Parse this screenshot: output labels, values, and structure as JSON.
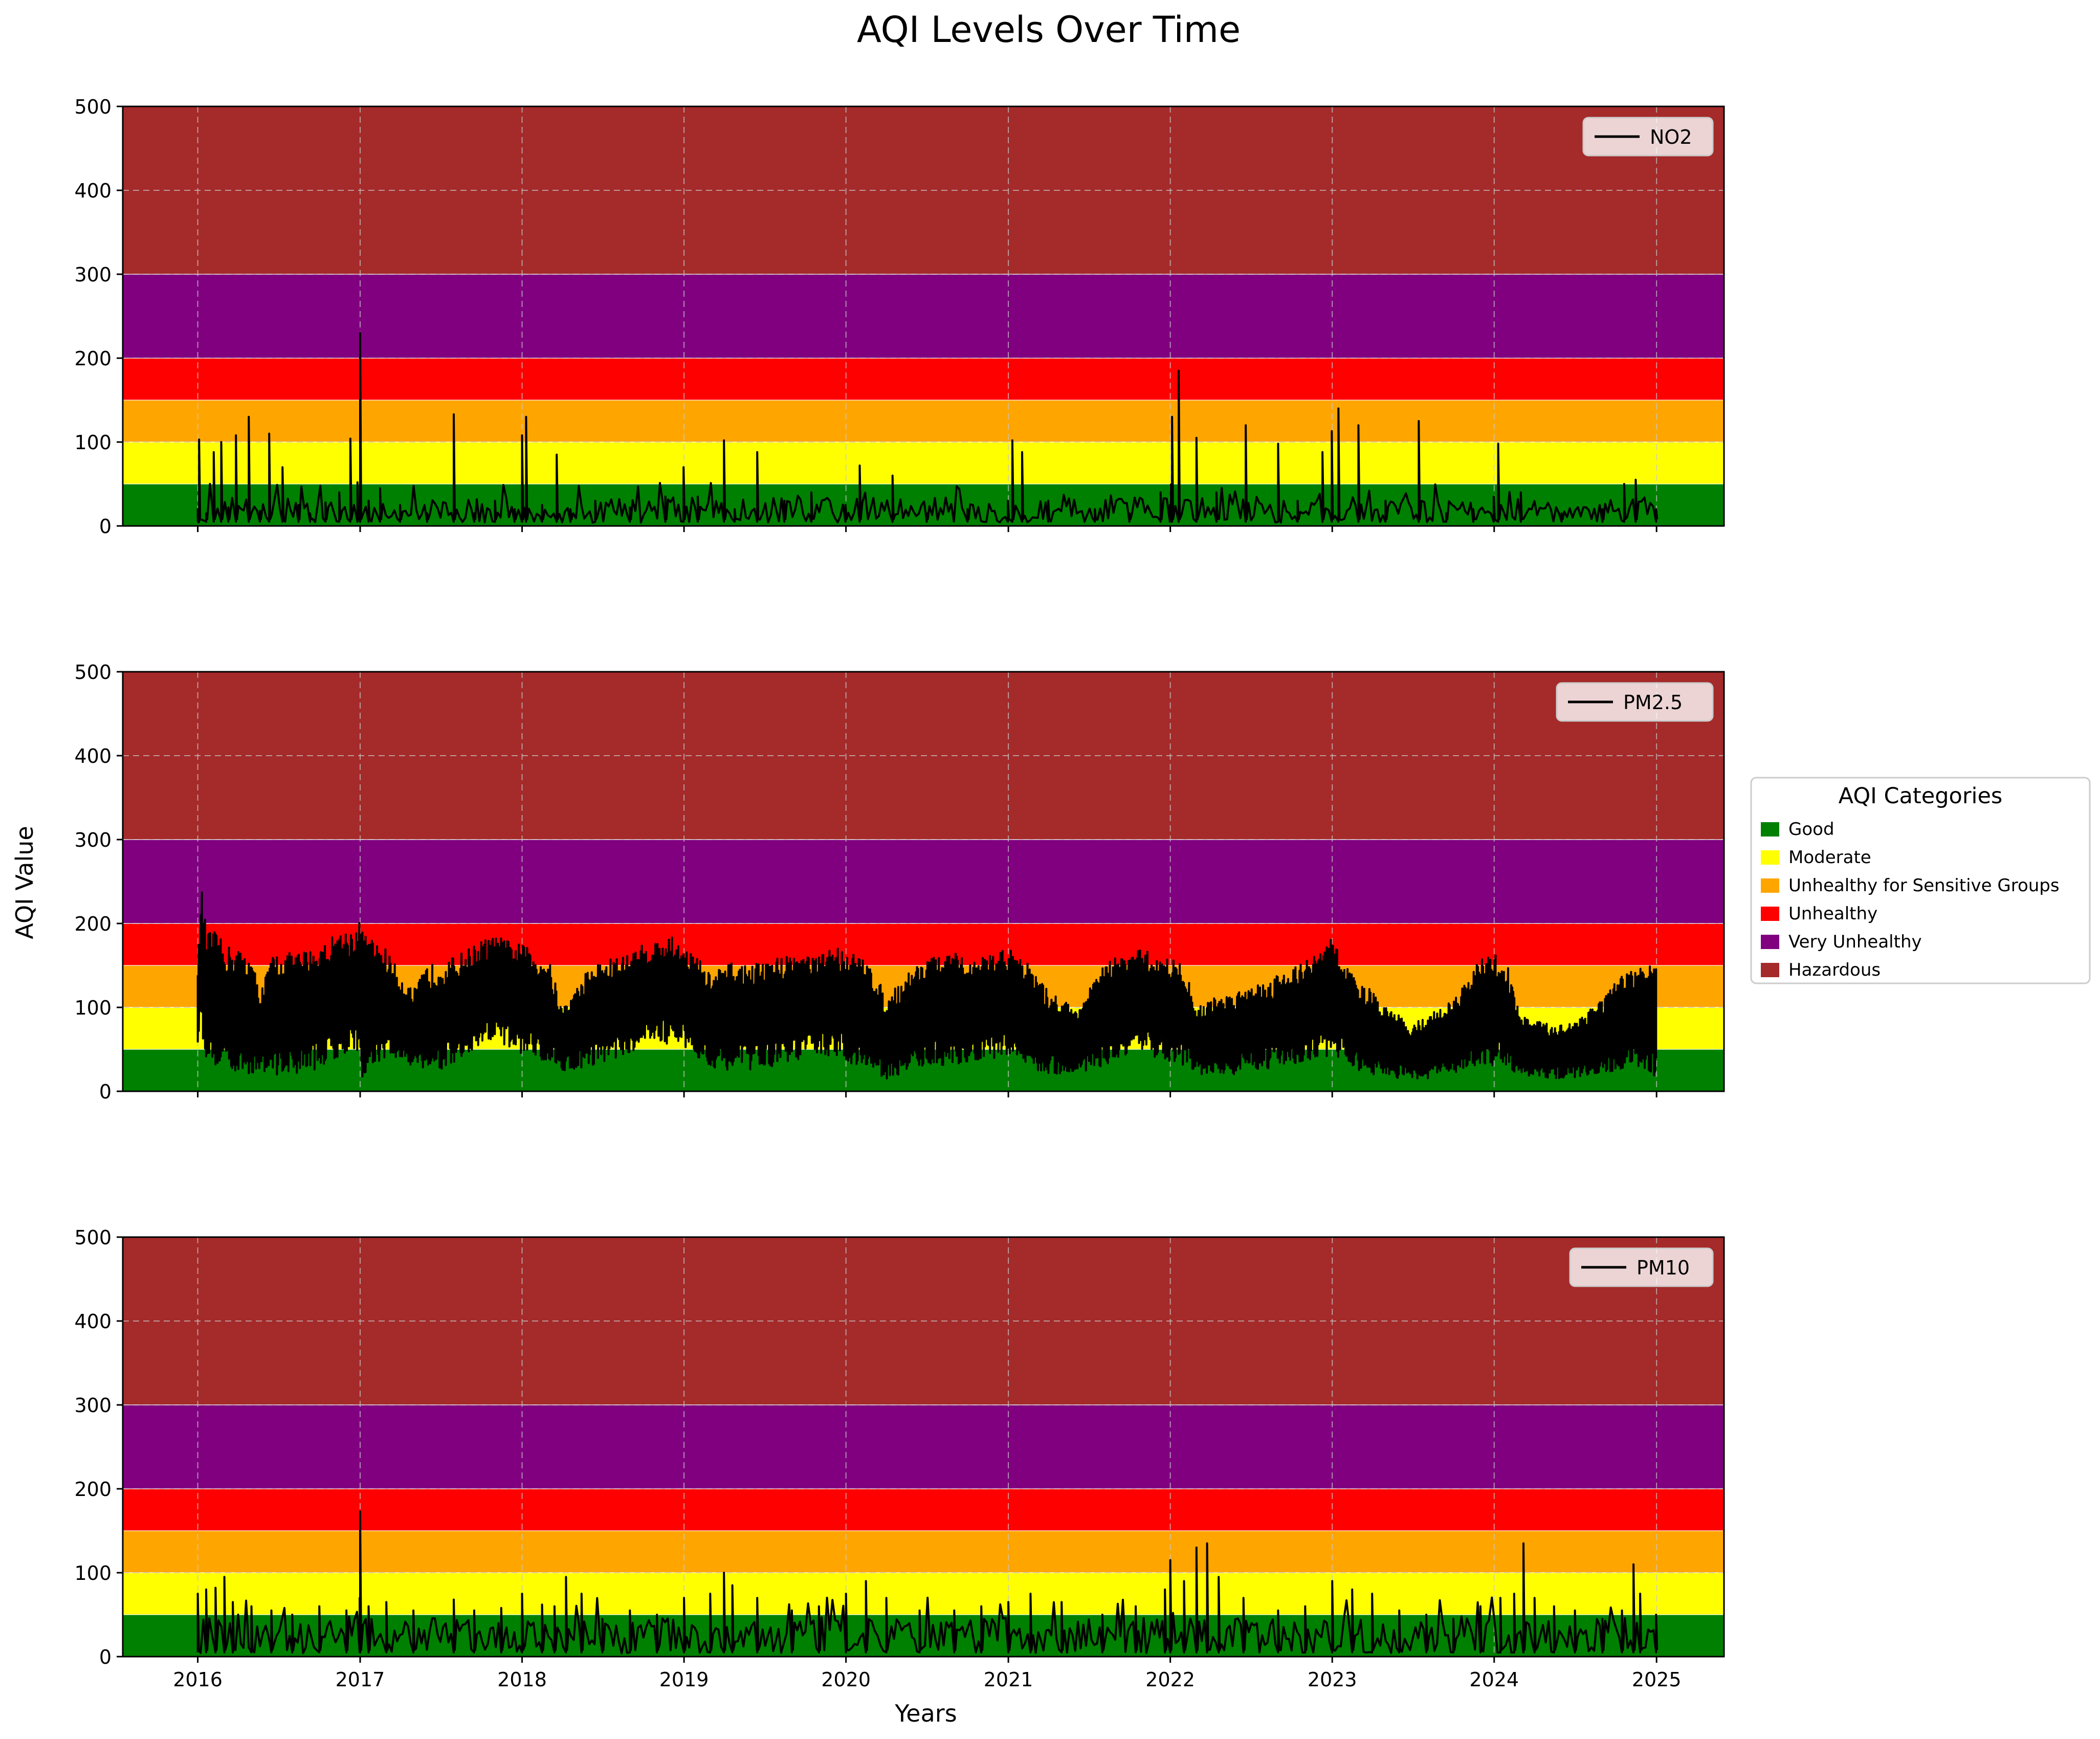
{
  "chart_data": {
    "type": "line",
    "title": "AQI Levels Over Time",
    "xlabel": "Years",
    "ylabel": "AQI Value",
    "x_ticks": [
      "2016",
      "2017",
      "2018",
      "2019",
      "2020",
      "2021",
      "2022",
      "2023",
      "2024",
      "2025"
    ],
    "x_range": [
      "2015-07-16",
      "2025-06-02"
    ],
    "y_ticks": [
      "0",
      "100",
      "200",
      "300",
      "400",
      "500"
    ],
    "ylim": [
      0,
      500
    ],
    "grid": true,
    "series_legend_placement": "top-right",
    "categories_legend": {
      "title": "AQI Categories",
      "placement": "right",
      "entries": [
        {
          "label": "Good",
          "range": [
            0,
            50
          ],
          "color": "#008000"
        },
        {
          "label": "Moderate",
          "range": [
            50,
            100
          ],
          "color": "#ffff00"
        },
        {
          "label": "Unhealthy for Sensitive Groups",
          "range": [
            100,
            150
          ],
          "color": "#ffa500"
        },
        {
          "label": "Unhealthy",
          "range": [
            150,
            200
          ],
          "color": "#ff0000"
        },
        {
          "label": "Very Unhealthy",
          "range": [
            200,
            300
          ],
          "color": "#800080"
        },
        {
          "label": "Hazardous",
          "range": [
            300,
            500
          ],
          "color": "#a52a2a"
        }
      ]
    },
    "panels": [
      {
        "name": "NO2",
        "x": [
          "2016-01-01",
          "2016-01-04",
          "2016-01-20",
          "2016-02-06",
          "2016-02-23",
          "2016-03-10",
          "2016-03-27",
          "2016-04-25",
          "2016-05-20",
          "2016-06-10",
          "2016-07-10",
          "2016-08-15",
          "2016-09-10",
          "2016-10-15",
          "2016-11-15",
          "2016-12-10",
          "2016-12-26",
          "2017-01-01",
          "2017-01-20",
          "2017-02-15",
          "2017-04-01",
          "2017-06-01",
          "2017-07-31",
          "2017-09-15",
          "2017-11-01",
          "2017-12-15",
          "2018-01-01",
          "2018-01-10",
          "2018-02-15",
          "2018-03-20",
          "2018-04-20",
          "2018-06-15",
          "2018-09-01",
          "2018-11-20",
          "2018-12-31",
          "2019-02-01",
          "2019-04-01",
          "2019-04-25",
          "2019-06-15",
          "2019-08-15",
          "2019-10-15",
          "2019-12-31",
          "2020-02-01",
          "2020-04-15",
          "2020-07-01",
          "2020-10-01",
          "2020-12-31",
          "2021-01-10",
          "2021-02-01",
          "2021-04-01",
          "2021-07-15",
          "2021-10-01",
          "2021-12-10",
          "2021-12-31",
          "2022-01-05",
          "2022-01-20",
          "2022-03-01",
          "2022-04-15",
          "2022-06-20",
          "2022-09-01",
          "2022-10-15",
          "2022-12-10",
          "2022-12-31",
          "2023-01-15",
          "2023-03-01",
          "2023-05-01",
          "2023-07-15",
          "2023-09-15",
          "2023-11-15",
          "2023-12-31",
          "2024-01-10",
          "2024-03-01",
          "2024-06-01",
          "2024-09-01",
          "2024-10-20",
          "2024-11-15",
          "2024-12-31"
        ],
        "y": [
          20,
          103,
          15,
          88,
          100,
          22,
          108,
          130,
          18,
          110,
          70,
          25,
          15,
          28,
          40,
          104,
          52,
          230,
          30,
          45,
          25,
          15,
          133,
          15,
          30,
          20,
          108,
          130,
          25,
          85,
          20,
          30,
          22,
          35,
          70,
          35,
          102,
          20,
          88,
          30,
          40,
          25,
          72,
          60,
          15,
          20,
          30,
          102,
          88,
          30,
          20,
          15,
          40,
          25,
          130,
          185,
          105,
          40,
          120,
          98,
          30,
          88,
          113,
          140,
          120,
          30,
          125,
          15,
          20,
          35,
          98,
          40,
          15,
          20,
          50,
          55,
          20
        ]
      },
      {
        "name": "PM2.5",
        "x": [
          "2016-01-01",
          "2016-01-05",
          "2016-01-10",
          "2016-01-20",
          "2016-02-10",
          "2016-03-01",
          "2016-04-01",
          "2016-05-01",
          "2016-05-20",
          "2016-06-20",
          "2016-08-01",
          "2016-09-15",
          "2016-10-15",
          "2016-11-10",
          "2016-12-20",
          "2017-01-01",
          "2017-01-08",
          "2017-02-01",
          "2017-03-01",
          "2017-04-01",
          "2017-05-01",
          "2017-06-01",
          "2017-07-01",
          "2017-08-01",
          "2017-09-01",
          "2017-10-01",
          "2017-11-01",
          "2017-12-01",
          "2018-01-01",
          "2018-02-01",
          "2018-03-01",
          "2018-04-01",
          "2018-05-01",
          "2018-06-01",
          "2018-07-01",
          "2018-08-01",
          "2018-09-01",
          "2018-10-01",
          "2018-11-01",
          "2018-12-01",
          "2019-01-01",
          "2019-02-01",
          "2019-03-01",
          "2019-04-01",
          "2019-05-01",
          "2019-06-01",
          "2019-07-01",
          "2019-08-01",
          "2019-09-01",
          "2019-10-01",
          "2019-11-01",
          "2019-12-01",
          "2020-01-01",
          "2020-02-01",
          "2020-03-01",
          "2020-04-01",
          "2020-05-01",
          "2020-06-01",
          "2020-07-01",
          "2020-08-01",
          "2020-09-01",
          "2020-10-01",
          "2020-11-01",
          "2020-12-01",
          "2021-01-01",
          "2021-02-01",
          "2021-03-01",
          "2021-04-01",
          "2021-05-01",
          "2021-06-01",
          "2021-07-01",
          "2021-08-01",
          "2021-09-01",
          "2021-10-01",
          "2021-11-01",
          "2021-12-01",
          "2022-01-01",
          "2022-02-01",
          "2022-03-01",
          "2022-04-01",
          "2022-05-01",
          "2022-06-01",
          "2022-07-01",
          "2022-08-01",
          "2022-09-01",
          "2022-10-01",
          "2022-11-01",
          "2022-12-01",
          "2023-01-01",
          "2023-02-01",
          "2023-03-01",
          "2023-04-01",
          "2023-05-01",
          "2023-06-01",
          "2023-07-01",
          "2023-08-01",
          "2023-09-01",
          "2023-10-01",
          "2023-11-01",
          "2023-12-01",
          "2024-01-01",
          "2024-02-01",
          "2024-03-01",
          "2024-04-01",
          "2024-05-01",
          "2024-06-01",
          "2024-07-01",
          "2024-08-01",
          "2024-09-01",
          "2024-10-01",
          "2024-11-01",
          "2024-12-01",
          "2024-12-31"
        ],
        "y_upper": [
          170,
          180,
          243,
          192,
          190,
          175,
          170,
          160,
          120,
          165,
          165,
          170,
          178,
          190,
          195,
          205,
          190,
          180,
          170,
          140,
          120,
          150,
          155,
          160,
          170,
          180,
          185,
          180,
          175,
          165,
          160,
          100,
          120,
          150,
          155,
          160,
          165,
          175,
          180,
          185,
          175,
          160,
          140,
          150,
          155,
          150,
          155,
          160,
          165,
          165,
          160,
          175,
          170,
          160,
          150,
          110,
          130,
          150,
          160,
          160,
          165,
          155,
          160,
          165,
          170,
          165,
          140,
          120,
          110,
          100,
          120,
          150,
          160,
          165,
          170,
          160,
          160,
          150,
          100,
          110,
          115,
          120,
          130,
          130,
          140,
          150,
          155,
          165,
          185,
          150,
          130,
          120,
          100,
          90,
          80,
          90,
          100,
          110,
          130,
          160,
          165,
          150,
          90,
          85,
          80,
          80,
          85,
          100,
          110,
          130,
          145,
          150,
          150
        ],
        "y_lower": [
          30,
          100,
          60,
          40,
          30,
          30,
          20,
          20,
          25,
          20,
          20,
          25,
          30,
          40,
          50,
          20,
          15,
          30,
          40,
          35,
          30,
          25,
          25,
          30,
          40,
          50,
          60,
          50,
          45,
          40,
          35,
          25,
          25,
          30,
          35,
          40,
          45,
          55,
          60,
          55,
          50,
          40,
          30,
          25,
          25,
          25,
          30,
          30,
          35,
          40,
          45,
          40,
          35,
          30,
          20,
          15,
          20,
          25,
          30,
          30,
          35,
          30,
          35,
          40,
          40,
          35,
          25,
          20,
          20,
          20,
          25,
          30,
          35,
          40,
          45,
          40,
          35,
          30,
          20,
          20,
          20,
          20,
          25,
          25,
          30,
          30,
          35,
          40,
          40,
          35,
          25,
          20,
          20,
          15,
          15,
          15,
          20,
          20,
          25,
          30,
          30,
          25,
          20,
          15,
          15,
          15,
          15,
          20,
          20,
          25,
          30,
          30,
          10
        ]
      },
      {
        "name": "PM10",
        "x": [
          "2016-01-01",
          "2016-01-20",
          "2016-02-10",
          "2016-03-01",
          "2016-03-20",
          "2016-05-01",
          "2016-06-15",
          "2016-08-01",
          "2016-10-01",
          "2016-12-01",
          "2016-12-31",
          "2017-01-01",
          "2017-01-20",
          "2017-03-01",
          "2017-05-01",
          "2017-07-31",
          "2017-09-15",
          "2017-11-15",
          "2018-01-01",
          "2018-02-15",
          "2018-03-15",
          "2018-04-10",
          "2018-05-15",
          "2018-07-01",
          "2018-09-01",
          "2018-11-01",
          "2019-01-01",
          "2019-03-01",
          "2019-04-01",
          "2019-04-20",
          "2019-06-15",
          "2019-09-01",
          "2019-11-01",
          "2020-01-01",
          "2020-02-15",
          "2020-04-01",
          "2020-06-15",
          "2020-09-01",
          "2020-11-01",
          "2021-01-01",
          "2021-02-20",
          "2021-05-01",
          "2021-08-01",
          "2021-10-15",
          "2021-12-20",
          "2022-01-01",
          "2022-02-01",
          "2022-03-01",
          "2022-03-25",
          "2022-04-20",
          "2022-06-15",
          "2022-09-01",
          "2022-11-01",
          "2023-01-01",
          "2023-02-15",
          "2023-04-01",
          "2023-06-01",
          "2023-08-01",
          "2023-10-01",
          "2023-12-01",
          "2024-01-15",
          "2024-02-15",
          "2024-03-07",
          "2024-04-01",
          "2024-05-15",
          "2024-07-01",
          "2024-09-01",
          "2024-10-15",
          "2024-11-10",
          "2024-11-25",
          "2024-12-31"
        ],
        "y": [
          75,
          80,
          82,
          95,
          65,
          60,
          55,
          50,
          60,
          55,
          70,
          173,
          60,
          65,
          55,
          68,
          55,
          58,
          75,
          62,
          60,
          95,
          75,
          45,
          55,
          50,
          70,
          75,
          100,
          85,
          70,
          55,
          60,
          75,
          90,
          70,
          55,
          55,
          60,
          65,
          75,
          65,
          50,
          60,
          80,
          115,
          90,
          130,
          135,
          95,
          70,
          55,
          60,
          90,
          80,
          75,
          55,
          50,
          45,
          60,
          70,
          75,
          135,
          70,
          60,
          55,
          45,
          55,
          110,
          75,
          50
        ]
      }
    ]
  }
}
